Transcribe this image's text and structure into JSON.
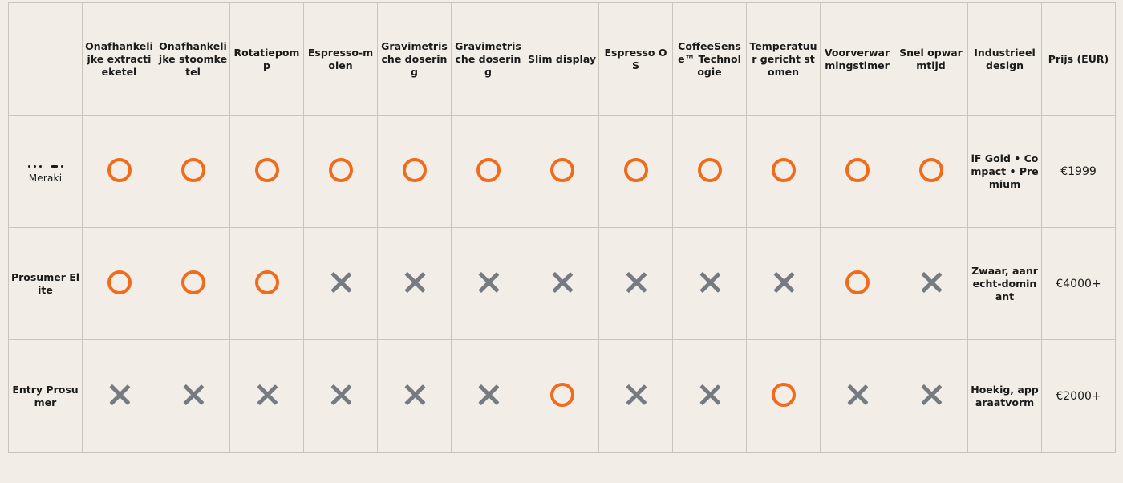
{
  "headers": [
    "",
    "Onafhankelijke extractieketel",
    "Onafhankelijke stoomketel",
    "Rotatiepomp",
    "Espresso-molen",
    "Gravimetrische dosering",
    "Gravimetrische dosering",
    "Slim display",
    "Espresso OS",
    "CoffeeSense™ Technologie",
    "Temperatuur gericht stomen",
    "Voorverwarmingstimer",
    "Snel opwarmtijd",
    "Industrieel design",
    "Prijs (EUR)"
  ],
  "rows": [
    {
      "label": "Meraki",
      "is_logo": true,
      "features": [
        "yes",
        "yes",
        "yes",
        "yes",
        "yes",
        "yes",
        "yes",
        "yes",
        "yes",
        "yes",
        "yes",
        "yes"
      ],
      "design": "iF Gold • Compact • Premium",
      "price": "€1999"
    },
    {
      "label": "Prosumer Elite",
      "is_logo": false,
      "features": [
        "yes",
        "yes",
        "yes",
        "no",
        "no",
        "no",
        "no",
        "no",
        "no",
        "no",
        "yes",
        "no"
      ],
      "design": "Zwaar, aanrecht-dominant",
      "price": "€4000+"
    },
    {
      "label": "Entry Prosumer",
      "is_logo": false,
      "features": [
        "no",
        "no",
        "no",
        "no",
        "no",
        "no",
        "yes",
        "no",
        "no",
        "yes",
        "no",
        "no"
      ],
      "design": "Hoekig, apparaatvorm",
      "price": "€2000+"
    }
  ],
  "icons": {
    "yes": "orange-circle-icon",
    "no": "gray-cross-icon"
  },
  "colors": {
    "background": "#f2eee7",
    "yes": "#f06b1c",
    "no": "#767b82",
    "grid": "#c9c5bd"
  }
}
